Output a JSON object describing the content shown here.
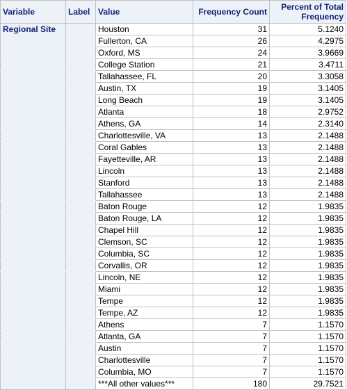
{
  "table": {
    "headers": {
      "variable": "Variable",
      "label": "Label",
      "value": "Value",
      "count": "Frequency Count",
      "percent": "Percent of Total Frequency"
    },
    "variable_name": "Regional Site",
    "rows": [
      {
        "value": "Houston",
        "count": "31",
        "percent": "5.1240"
      },
      {
        "value": "Fullerton, CA",
        "count": "26",
        "percent": "4.2975"
      },
      {
        "value": "Oxford, MS",
        "count": "24",
        "percent": "3.9669"
      },
      {
        "value": "College Station",
        "count": "21",
        "percent": "3.4711"
      },
      {
        "value": "Tallahassee, FL",
        "count": "20",
        "percent": "3.3058"
      },
      {
        "value": "Austin, TX",
        "count": "19",
        "percent": "3.1405"
      },
      {
        "value": "Long Beach",
        "count": "19",
        "percent": "3.1405"
      },
      {
        "value": "Atlanta",
        "count": "18",
        "percent": "2.9752"
      },
      {
        "value": "Athens, GA",
        "count": "14",
        "percent": "2.3140"
      },
      {
        "value": "Charlottesville, VA",
        "count": "13",
        "percent": "2.1488"
      },
      {
        "value": "Coral Gables",
        "count": "13",
        "percent": "2.1488"
      },
      {
        "value": "Fayetteville, AR",
        "count": "13",
        "percent": "2.1488"
      },
      {
        "value": "Lincoln",
        "count": "13",
        "percent": "2.1488"
      },
      {
        "value": "Stanford",
        "count": "13",
        "percent": "2.1488"
      },
      {
        "value": "Tallahassee",
        "count": "13",
        "percent": "2.1488"
      },
      {
        "value": "Baton Rouge",
        "count": "12",
        "percent": "1.9835"
      },
      {
        "value": "Baton Rouge, LA",
        "count": "12",
        "percent": "1.9835"
      },
      {
        "value": "Chapel Hill",
        "count": "12",
        "percent": "1.9835"
      },
      {
        "value": "Clemson, SC",
        "count": "12",
        "percent": "1.9835"
      },
      {
        "value": "Columbia, SC",
        "count": "12",
        "percent": "1.9835"
      },
      {
        "value": "Corvallis, OR",
        "count": "12",
        "percent": "1.9835"
      },
      {
        "value": "Lincoln, NE",
        "count": "12",
        "percent": "1.9835"
      },
      {
        "value": "Miami",
        "count": "12",
        "percent": "1.9835"
      },
      {
        "value": "Tempe",
        "count": "12",
        "percent": "1.9835"
      },
      {
        "value": "Tempe, AZ",
        "count": "12",
        "percent": "1.9835"
      },
      {
        "value": "Athens",
        "count": "7",
        "percent": "1.1570"
      },
      {
        "value": "Atlanta, GA",
        "count": "7",
        "percent": "1.1570"
      },
      {
        "value": "Austin",
        "count": "7",
        "percent": "1.1570"
      },
      {
        "value": "Charlottesville",
        "count": "7",
        "percent": "1.1570"
      },
      {
        "value": "Columbia, MO",
        "count": "7",
        "percent": "1.1570"
      },
      {
        "value": "***All other values***",
        "count": "180",
        "percent": "29.7521"
      }
    ]
  }
}
